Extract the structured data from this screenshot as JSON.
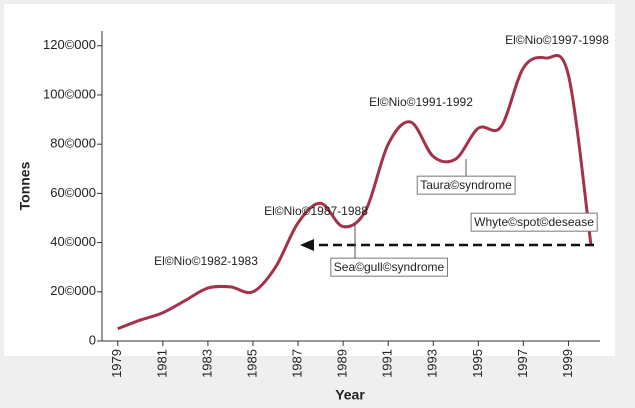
{
  "chart_data": {
    "type": "line",
    "x": [
      1979,
      1980,
      1981,
      1982,
      1983,
      1984,
      1985,
      1986,
      1987,
      1988,
      1989,
      1990,
      1991,
      1992,
      1993,
      1994,
      1995,
      1996,
      1997,
      1998,
      1999,
      2000
    ],
    "series": [
      {
        "color": "#a3324a",
        "values": [
          5000,
          8500,
          11500,
          16500,
          21500,
          22000,
          20000,
          30000,
          48000,
          56000,
          46500,
          53000,
          80000,
          89000,
          75000,
          74000,
          86500,
          87000,
          111000,
          115000,
          108000,
          39000
        ]
      }
    ],
    "xlabel": "Year",
    "ylabel": "Tonnes",
    "xlim": [
      1978.3,
      2000.4
    ],
    "xticks": [
      1979,
      1981,
      1983,
      1985,
      1987,
      1989,
      1991,
      1993,
      1995,
      1997,
      1999
    ],
    "ylim": [
      0,
      126000
    ],
    "yticks": [
      0,
      {
        "value": 20000,
        "label": "20©000"
      },
      {
        "value": 40000,
        "label": "40©000"
      },
      {
        "value": 60000,
        "label": "60©000"
      },
      {
        "value": 80000,
        "label": "80©000"
      },
      {
        "value": 100000,
        "label": "100©000"
      },
      {
        "value": 120000,
        "label": "120©000"
      }
    ],
    "annotations": [
      "El©Nio©1982-1983",
      "El©Nio©1987-1988",
      "El©Nio©1991-1992",
      "El©Nio©1997-1998",
      "Taura©syndrome",
      "Sea©gull©syndrome",
      "Whyte©spot©desease"
    ]
  }
}
